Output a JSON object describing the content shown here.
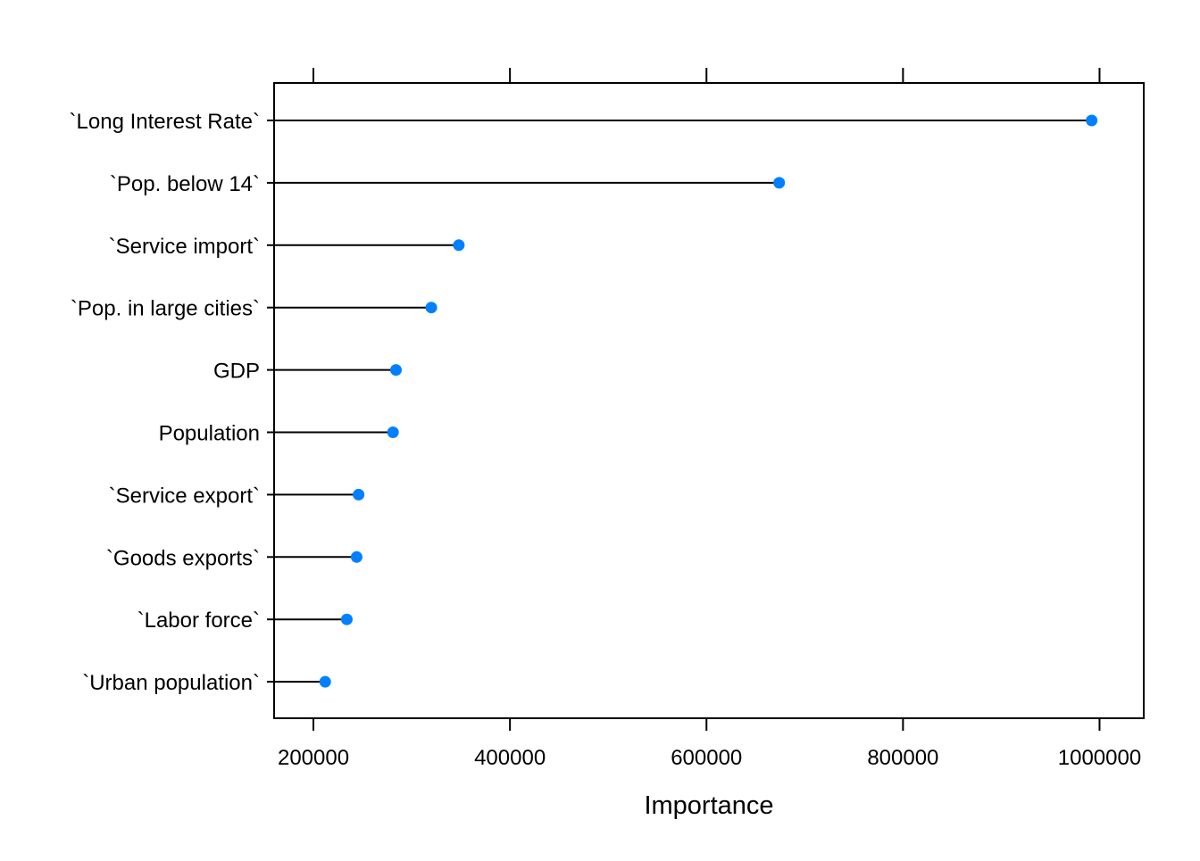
{
  "chart_data": {
    "type": "dotplot",
    "title": "",
    "xlabel": "Importance",
    "ylabel": "",
    "xlim": [
      160000,
      1045000
    ],
    "x_ticks": [
      200000,
      400000,
      600000,
      800000,
      1000000
    ],
    "x_tick_labels": [
      "200000",
      "400000",
      "600000",
      "800000",
      "1000000"
    ],
    "grid": false,
    "legend": "none",
    "categories": [
      "`Long Interest Rate`",
      "`Pop. below 14`",
      "`Service import`",
      "`Pop. in large cities`",
      "GDP",
      "Population",
      "`Service export`",
      "`Goods exports`",
      "`Labor force`",
      "`Urban population`"
    ],
    "values": [
      992000,
      674000,
      348000,
      320000,
      284000,
      281000,
      246000,
      244000,
      234000,
      212000
    ],
    "colors": {
      "point": "#0080FF",
      "line": "#000000",
      "axis": "#000000"
    }
  }
}
